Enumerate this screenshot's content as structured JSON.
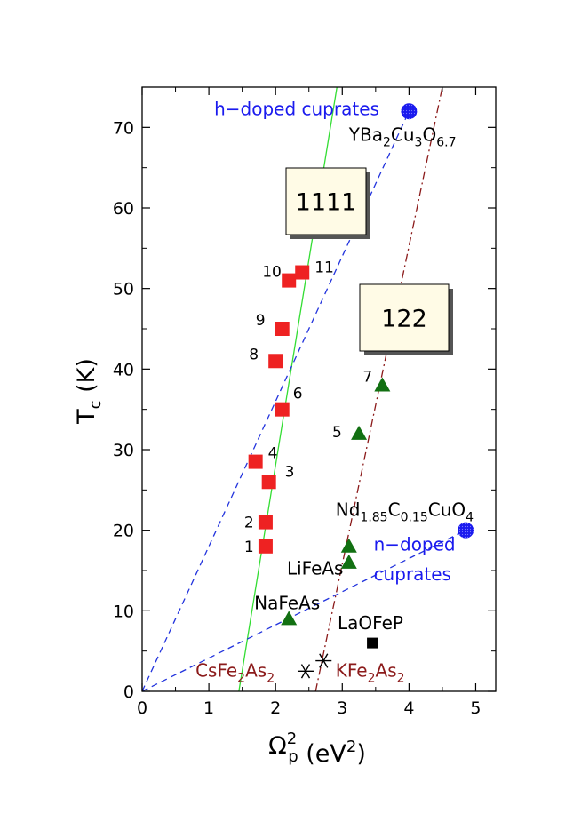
{
  "chart_data": {
    "type": "scatter",
    "xlabel": {
      "main": "Ω",
      "sup1": "2",
      "sub": "p",
      "rest": "  (eV",
      "sup2": "2",
      "close": ")"
    },
    "ylabel": {
      "main": "T",
      "sub": "c",
      "rest": "  (K)"
    },
    "xlim": [
      0,
      5.3
    ],
    "ylim": [
      0,
      75
    ],
    "xticks": [
      0,
      1,
      2,
      3,
      4,
      5
    ],
    "yticks": [
      0,
      10,
      20,
      30,
      40,
      50,
      60,
      70
    ],
    "grid": false,
    "series": [
      {
        "marker": "square",
        "color": "#ee2222",
        "points": [
          {
            "x": 1.85,
            "y": 18,
            "label": "1"
          },
          {
            "x": 1.85,
            "y": 21,
            "label": "2"
          },
          {
            "x": 1.9,
            "y": 26,
            "label": "3"
          },
          {
            "x": 1.7,
            "y": 28.5,
            "label": "4"
          },
          {
            "x": 2.1,
            "y": 35,
            "label": "6"
          },
          {
            "x": 2.0,
            "y": 41,
            "label": "8"
          },
          {
            "x": 2.1,
            "y": 45,
            "label": "9"
          },
          {
            "x": 2.2,
            "y": 51,
            "label": "10"
          },
          {
            "x": 2.4,
            "y": 52,
            "label": "11"
          }
        ]
      },
      {
        "marker": "triangle",
        "color": "#127012",
        "points": [
          {
            "x": 3.25,
            "y": 32,
            "label": "5"
          },
          {
            "x": 3.6,
            "y": 38,
            "label": "7"
          },
          {
            "x": 3.1,
            "y": 18,
            "label": ""
          },
          {
            "x": 3.1,
            "y": 16,
            "label": ""
          },
          {
            "x": 2.2,
            "y": 9,
            "label": ""
          }
        ]
      },
      {
        "marker": "circle",
        "color": "#1a1aee",
        "points": [
          {
            "x": 4.0,
            "y": 72,
            "label": ""
          },
          {
            "x": 4.85,
            "y": 20,
            "label": ""
          }
        ]
      },
      {
        "marker": "small-square",
        "color": "#000000",
        "points": [
          {
            "x": 3.45,
            "y": 6,
            "label": ""
          }
        ]
      },
      {
        "marker": "star",
        "color": "#000000",
        "points": [
          {
            "x": 2.45,
            "y": 2.5,
            "label": ""
          },
          {
            "x": 2.72,
            "y": 3.8,
            "label": ""
          }
        ]
      }
    ],
    "lines": [
      {
        "style": "solid",
        "color": "#33dd33",
        "from": [
          1.45,
          0
        ],
        "to": [
          2.92,
          75
        ]
      },
      {
        "style": "dashdot",
        "color": "#8b1a1a",
        "from": [
          2.6,
          0
        ],
        "to": [
          4.5,
          75
        ]
      },
      {
        "style": "dashed",
        "color": "#2233dd",
        "from": [
          0,
          0
        ],
        "to": [
          4.0,
          72
        ]
      },
      {
        "style": "dashed",
        "color": "#2233dd",
        "from": [
          0,
          0
        ],
        "to": [
          4.85,
          20
        ]
      }
    ],
    "annotations": [
      {
        "text": "h−doped cuprates",
        "color": "#1a1aee",
        "x": 1.08,
        "y": 71.5
      },
      {
        "text": "n−doped",
        "color": "#1a1aee",
        "x": 3.47,
        "y": 17.5
      },
      {
        "text": "cuprates",
        "color": "#1a1aee",
        "x": 3.47,
        "y": 13.8
      },
      {
        "text": "LiFeAs",
        "color": "#000000",
        "x": 2.17,
        "y": 14.5
      },
      {
        "text": "NaFeAs",
        "color": "#000000",
        "x": 1.68,
        "y": 10.2
      },
      {
        "text": "LaOFeP",
        "color": "#000000",
        "x": 2.93,
        "y": 7.7
      }
    ],
    "formulas": [
      {
        "color": "#000000",
        "x": 3.1,
        "y": 68.3,
        "parts": [
          [
            "YBa",
            ""
          ],
          [
            "2",
            "sub"
          ],
          [
            "Cu",
            ""
          ],
          [
            "3",
            "sub"
          ],
          [
            "O",
            ""
          ],
          [
            "6.7",
            "sub"
          ]
        ]
      },
      {
        "color": "#000000",
        "x": 2.9,
        "y": 21.8,
        "parts": [
          [
            "Nd",
            ""
          ],
          [
            "1.85",
            "sub"
          ],
          [
            "C",
            ""
          ],
          [
            "0.15",
            "sub"
          ],
          [
            "CuO",
            ""
          ],
          [
            "4",
            "sub"
          ]
        ]
      },
      {
        "color": "#8b1a1a",
        "x": 0.8,
        "y": 1.8,
        "parts": [
          [
            "CsFe",
            ""
          ],
          [
            "2",
            "sub"
          ],
          [
            "As",
            ""
          ],
          [
            "2",
            "sub"
          ]
        ]
      },
      {
        "color": "#8b1a1a",
        "x": 2.9,
        "y": 1.8,
        "parts": [
          [
            "KFe",
            ""
          ],
          [
            "2",
            "sub"
          ],
          [
            "As",
            ""
          ],
          [
            "2",
            "sub"
          ]
        ]
      }
    ],
    "boxes": [
      {
        "text": "1111"
      },
      {
        "text": "122"
      }
    ]
  }
}
